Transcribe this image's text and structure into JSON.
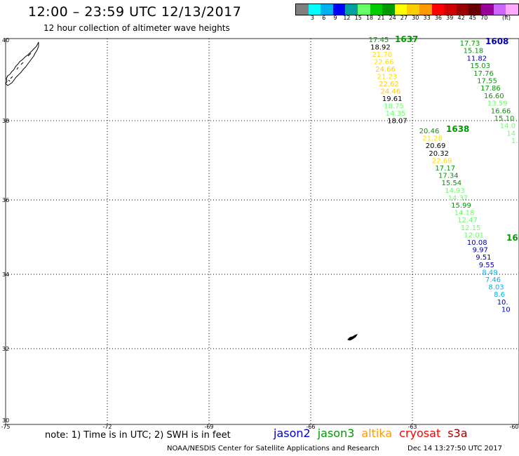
{
  "header": {
    "title": "12:00 – 23:59 UTC 12/13/2017",
    "subtitle": "12 hour collection of altimeter wave heights"
  },
  "legend": {
    "colors": [
      "#808080",
      "#00ffff",
      "#00b0f0",
      "#0000ff",
      "#00a0a0",
      "#66ff66",
      "#00cc00",
      "#009900",
      "#ffff00",
      "#ffcc00",
      "#ff9900",
      "#ff0000",
      "#cc0000",
      "#990000",
      "#660000",
      "#990099",
      "#cc66ff",
      "#ffaaff",
      "#000000"
    ],
    "labels": [
      "3",
      "6",
      "9",
      "12",
      "15",
      "18",
      "21",
      "24",
      "27",
      "30",
      "33",
      "36",
      "39",
      "42",
      "45",
      "70"
    ],
    "unit": "(ft)"
  },
  "axes": {
    "lon_ticks": [
      "-75",
      "-72",
      "-69",
      "-66",
      "-63",
      "-60"
    ],
    "lat_ticks": [
      "40",
      "38",
      "36",
      "34",
      "32",
      "30"
    ]
  },
  "tracks": [
    {
      "id": "1637",
      "label_color": "#009900",
      "points": [
        {
          "v": "17.45",
          "c": "#009900"
        },
        {
          "v": "18.92",
          "c": "#000000"
        },
        {
          "v": "21.70",
          "c": "#ffdd00"
        },
        {
          "v": "22.66",
          "c": "#ffdd00"
        },
        {
          "v": "24.66",
          "c": "#ffcc00"
        },
        {
          "v": "21.23",
          "c": "#ffdd00"
        },
        {
          "v": "22.62",
          "c": "#ffcc00"
        },
        {
          "v": "24.46",
          "c": "#ffcc00"
        },
        {
          "v": "19.61",
          "c": "#000000"
        },
        {
          "v": "18.75",
          "c": "#66ff66"
        },
        {
          "v": "14.35",
          "c": "#66ff66"
        },
        {
          "v": "18.07",
          "c": "#000000"
        }
      ]
    },
    {
      "id": "1638",
      "label_color": "#009900",
      "points": [
        {
          "v": "20.46",
          "c": "#009900"
        },
        {
          "v": "21.28",
          "c": "#ffdd00"
        },
        {
          "v": "20.69",
          "c": "#000000"
        },
        {
          "v": "20.32",
          "c": "#000000"
        },
        {
          "v": "22.69",
          "c": "#ffdd00"
        },
        {
          "v": "17.17",
          "c": "#009900"
        },
        {
          "v": "17.34",
          "c": "#009900"
        },
        {
          "v": "15.54",
          "c": "#009900"
        },
        {
          "v": "14.93",
          "c": "#66ff66"
        },
        {
          "v": "14.37",
          "c": "#66ff66"
        },
        {
          "v": "15.99",
          "c": "#009900"
        },
        {
          "v": "14.18",
          "c": "#66ff66"
        },
        {
          "v": "12.47",
          "c": "#66ff66"
        },
        {
          "v": "12.15",
          "c": "#66ff66"
        },
        {
          "v": "12.01",
          "c": "#66ff66"
        },
        {
          "v": "10.08",
          "c": "#0000aa"
        },
        {
          "v": "9.97",
          "c": "#0000aa"
        },
        {
          "v": "9.51",
          "c": "#0000aa"
        },
        {
          "v": "9.55",
          "c": "#0000aa"
        },
        {
          "v": "8.49",
          "c": "#00b0f0"
        },
        {
          "v": "7.46",
          "c": "#00b0f0"
        },
        {
          "v": "8.03",
          "c": "#00b0f0"
        },
        {
          "v": "8.6",
          "c": "#00b0f0"
        },
        {
          "v": "10.",
          "c": "#0000aa"
        },
        {
          "v": "10",
          "c": "#0000aa"
        }
      ]
    },
    {
      "id": "1608",
      "label_color": "#0000aa",
      "points": [
        {
          "v": "17.73",
          "c": "#009900"
        },
        {
          "v": "15.18",
          "c": "#009900"
        },
        {
          "v": "11.82",
          "c": "#0000aa"
        },
        {
          "v": "15.03",
          "c": "#009900"
        },
        {
          "v": "17.76",
          "c": "#009900"
        },
        {
          "v": "17.55",
          "c": "#009900"
        },
        {
          "v": "17.86",
          "c": "#009900"
        },
        {
          "v": "16.60",
          "c": "#009900"
        },
        {
          "v": "13.59",
          "c": "#66ff66"
        },
        {
          "v": "16.66",
          "c": "#009900"
        },
        {
          "v": "15.10",
          "c": "#009900"
        },
        {
          "v": "14.0",
          "c": "#66ff66"
        },
        {
          "v": "14",
          "c": "#66ff66"
        },
        {
          "v": "1.",
          "c": "#66ff66"
        }
      ]
    },
    {
      "id": "16",
      "label_color": "#009900",
      "points": []
    }
  ],
  "footer": {
    "note": "note: 1) Time is in UTC; 2) SWH is in feet",
    "satellites": [
      {
        "name": "jason2",
        "color": "#0000cc"
      },
      {
        "name": "jason3",
        "color": "#009900"
      },
      {
        "name": "altika",
        "color": "#ff9900"
      },
      {
        "name": "cryosat",
        "color": "#ff0000"
      },
      {
        "name": "s3a",
        "color": "#990000"
      }
    ],
    "credit": "NOAA/NESDIS Center for Satellite Applications and Research",
    "timestamp": "Dec 14 13:27:50 UTC 2017"
  }
}
